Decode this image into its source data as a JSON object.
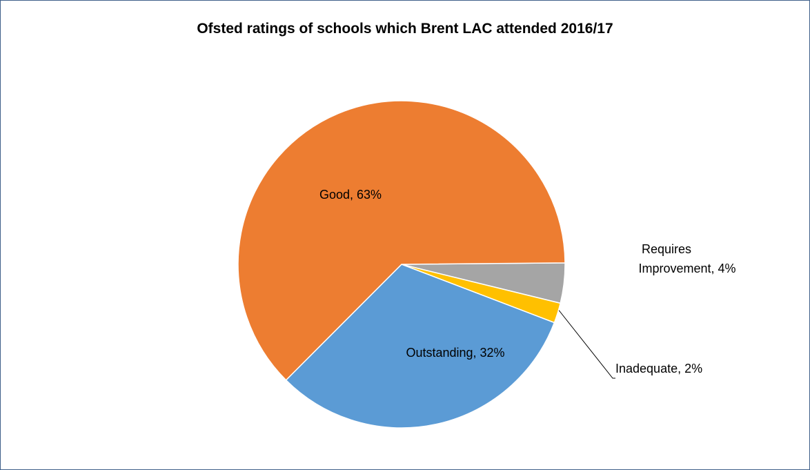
{
  "chart_data": {
    "type": "pie",
    "title": "Ofsted ratings of schools which Brent LAC attended 2016/17",
    "categories": [
      "Requires Improvement",
      "Inadequate",
      "Outstanding",
      "Good"
    ],
    "values": [
      4,
      2,
      32,
      63
    ],
    "value_labels": [
      "Requires Improvement, 4%",
      "Inadequate, 2%",
      "Outstanding, 32%",
      "Good, 63%"
    ],
    "colors": [
      "#a5a5a5",
      "#ffc000",
      "#5b9bd5",
      "#ed7d31"
    ]
  }
}
